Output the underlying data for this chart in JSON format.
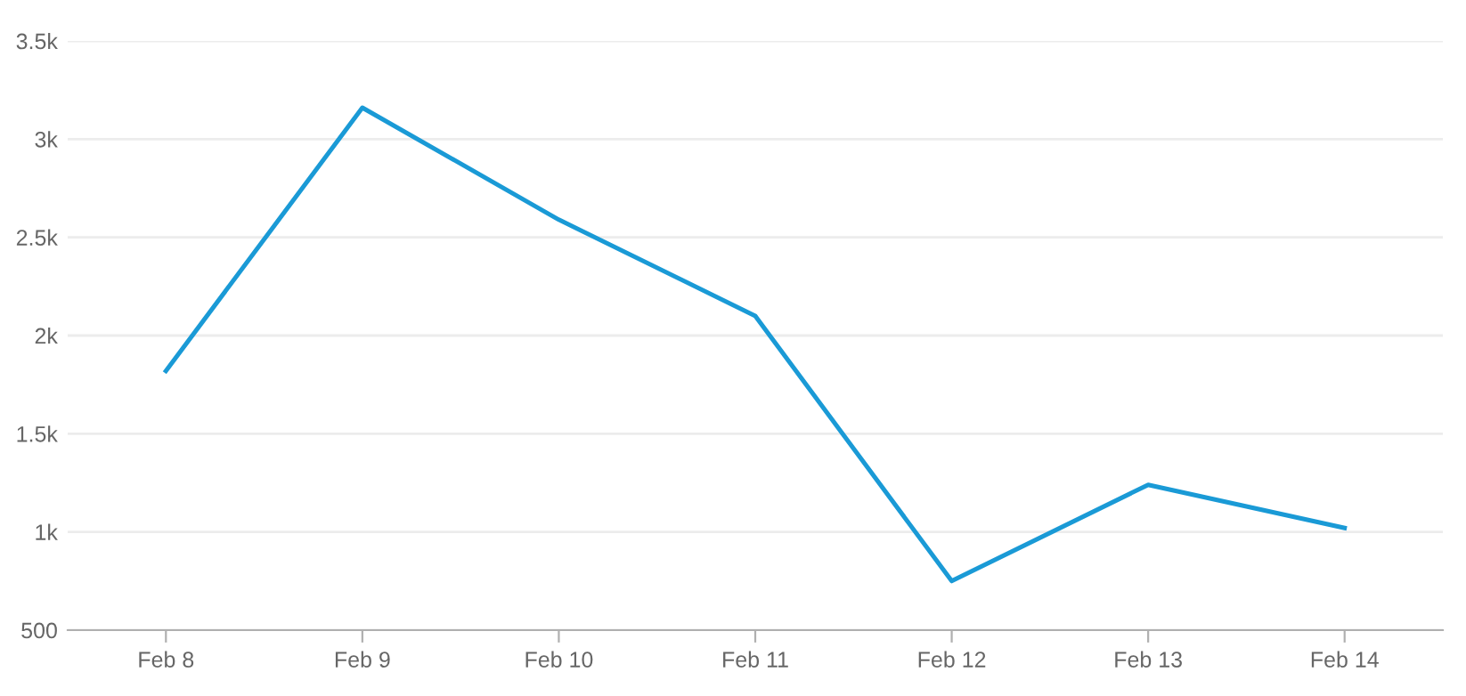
{
  "chart_data": {
    "type": "line",
    "categories": [
      "Feb 8",
      "Feb 9",
      "Feb 10",
      "Feb 11",
      "Feb 12",
      "Feb 13",
      "Feb 14"
    ],
    "series": [
      {
        "color": "#1a9ad6",
        "values": [
          1820,
          3160,
          2590,
          2100,
          750,
          1240,
          1020
        ]
      }
    ],
    "ylim": [
      500,
      3500
    ],
    "yticks": [
      500,
      {
        "value": 1000,
        "label": "1k"
      },
      {
        "value": 1500,
        "label": "1.5k"
      },
      {
        "value": 2000,
        "label": "2k"
      },
      {
        "value": 2500,
        "label": "2.5k"
      },
      {
        "value": 3000,
        "label": "3k"
      },
      {
        "value": 3500,
        "label": "3.5k"
      }
    ],
    "grid": "y",
    "marker": "none",
    "line_style": "solid"
  }
}
